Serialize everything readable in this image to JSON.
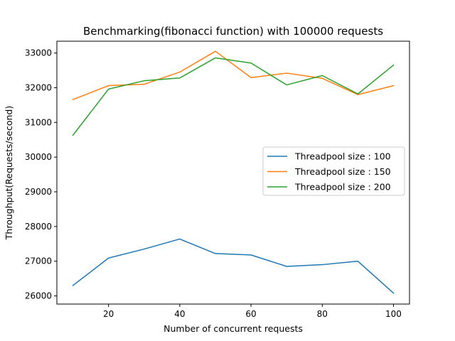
{
  "chart_data": {
    "type": "line",
    "title": "Benchmarking(fibonacci function) with 100000 requests",
    "xlabel": "Number of concurrent requests",
    "ylabel": "Throughput(Requests/second)",
    "x": [
      10,
      20,
      30,
      40,
      50,
      60,
      70,
      80,
      90,
      100
    ],
    "xlim": [
      5.5,
      104.5
    ],
    "ylim": [
      25765,
      33340
    ],
    "xticks": [
      20,
      40,
      60,
      80,
      100
    ],
    "xtick_labels": [
      "20",
      "40",
      "60",
      "80",
      "100"
    ],
    "yticks": [
      26000,
      27000,
      28000,
      29000,
      30000,
      31000,
      32000,
      33000
    ],
    "ytick_labels": [
      "26000",
      "27000",
      "28000",
      "29000",
      "30000",
      "31000",
      "32000",
      "33000"
    ],
    "grid": false,
    "legend_position": "center-right",
    "series": [
      {
        "name": "Threadpool size : 100",
        "color": "#1f77b4",
        "values": [
          26300,
          27090,
          27350,
          27640,
          27220,
          27180,
          26850,
          26900,
          27000,
          26080
        ]
      },
      {
        "name": "Threadpool size : 150",
        "color": "#ff7f0e",
        "values": [
          31660,
          32060,
          32100,
          32450,
          33050,
          32290,
          32420,
          32270,
          31800,
          32060
        ]
      },
      {
        "name": "Threadpool size : 200",
        "color": "#2ca02c",
        "values": [
          30630,
          31960,
          32200,
          32280,
          32860,
          32710,
          32080,
          32350,
          31820,
          32650
        ]
      }
    ]
  }
}
